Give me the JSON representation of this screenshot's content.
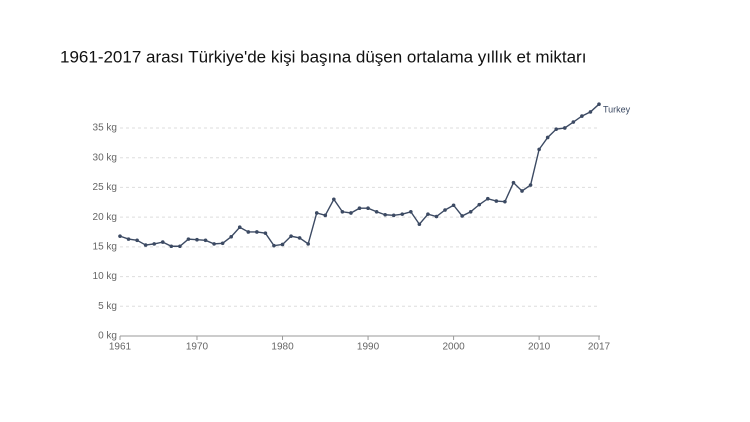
{
  "chart_data": {
    "type": "line",
    "title": "1961-2017 arası Türkiye'de kişi başına düşen ortalama yıllık et miktarı",
    "x": [
      1961,
      1962,
      1963,
      1964,
      1965,
      1966,
      1967,
      1968,
      1969,
      1970,
      1971,
      1972,
      1973,
      1974,
      1975,
      1976,
      1977,
      1978,
      1979,
      1980,
      1981,
      1982,
      1983,
      1984,
      1985,
      1986,
      1987,
      1988,
      1989,
      1990,
      1991,
      1992,
      1993,
      1994,
      1995,
      1996,
      1997,
      1998,
      1999,
      2000,
      2001,
      2002,
      2003,
      2004,
      2005,
      2006,
      2007,
      2008,
      2009,
      2010,
      2011,
      2012,
      2013,
      2014,
      2015,
      2016,
      2017
    ],
    "series": [
      {
        "name": "Turkey",
        "color": "#3c4a63",
        "values": [
          16.8,
          16.3,
          16.1,
          15.3,
          15.5,
          15.8,
          15.1,
          15.1,
          16.3,
          16.2,
          16.1,
          15.5,
          15.6,
          16.7,
          18.3,
          17.5,
          17.5,
          17.3,
          15.2,
          15.4,
          16.8,
          16.5,
          15.5,
          20.7,
          20.3,
          23.0,
          20.9,
          20.7,
          21.5,
          21.5,
          20.9,
          20.4,
          20.3,
          20.5,
          20.9,
          18.8,
          20.5,
          20.1,
          21.2,
          22.0,
          20.2,
          20.9,
          22.1,
          23.1,
          22.7,
          22.6,
          25.8,
          24.4,
          25.4,
          31.4,
          33.4,
          34.8,
          35.0,
          36.0,
          37.0,
          37.7,
          39.0
        ]
      }
    ],
    "xlim": [
      1961,
      2017
    ],
    "xticks": [
      1961,
      1970,
      1980,
      1990,
      2000,
      2010,
      2017
    ],
    "ylim": [
      0,
      39
    ],
    "yticks": [
      {
        "value": 0,
        "label": "0 kg"
      },
      {
        "value": 5,
        "label": "5 kg"
      },
      {
        "value": 10,
        "label": "10 kg"
      },
      {
        "value": 15,
        "label": "15 kg"
      },
      {
        "value": 20,
        "label": "20 kg"
      },
      {
        "value": 25,
        "label": "25 kg"
      },
      {
        "value": 30,
        "label": "30 kg"
      },
      {
        "value": 35,
        "label": "35 kg"
      }
    ],
    "grid": true
  }
}
